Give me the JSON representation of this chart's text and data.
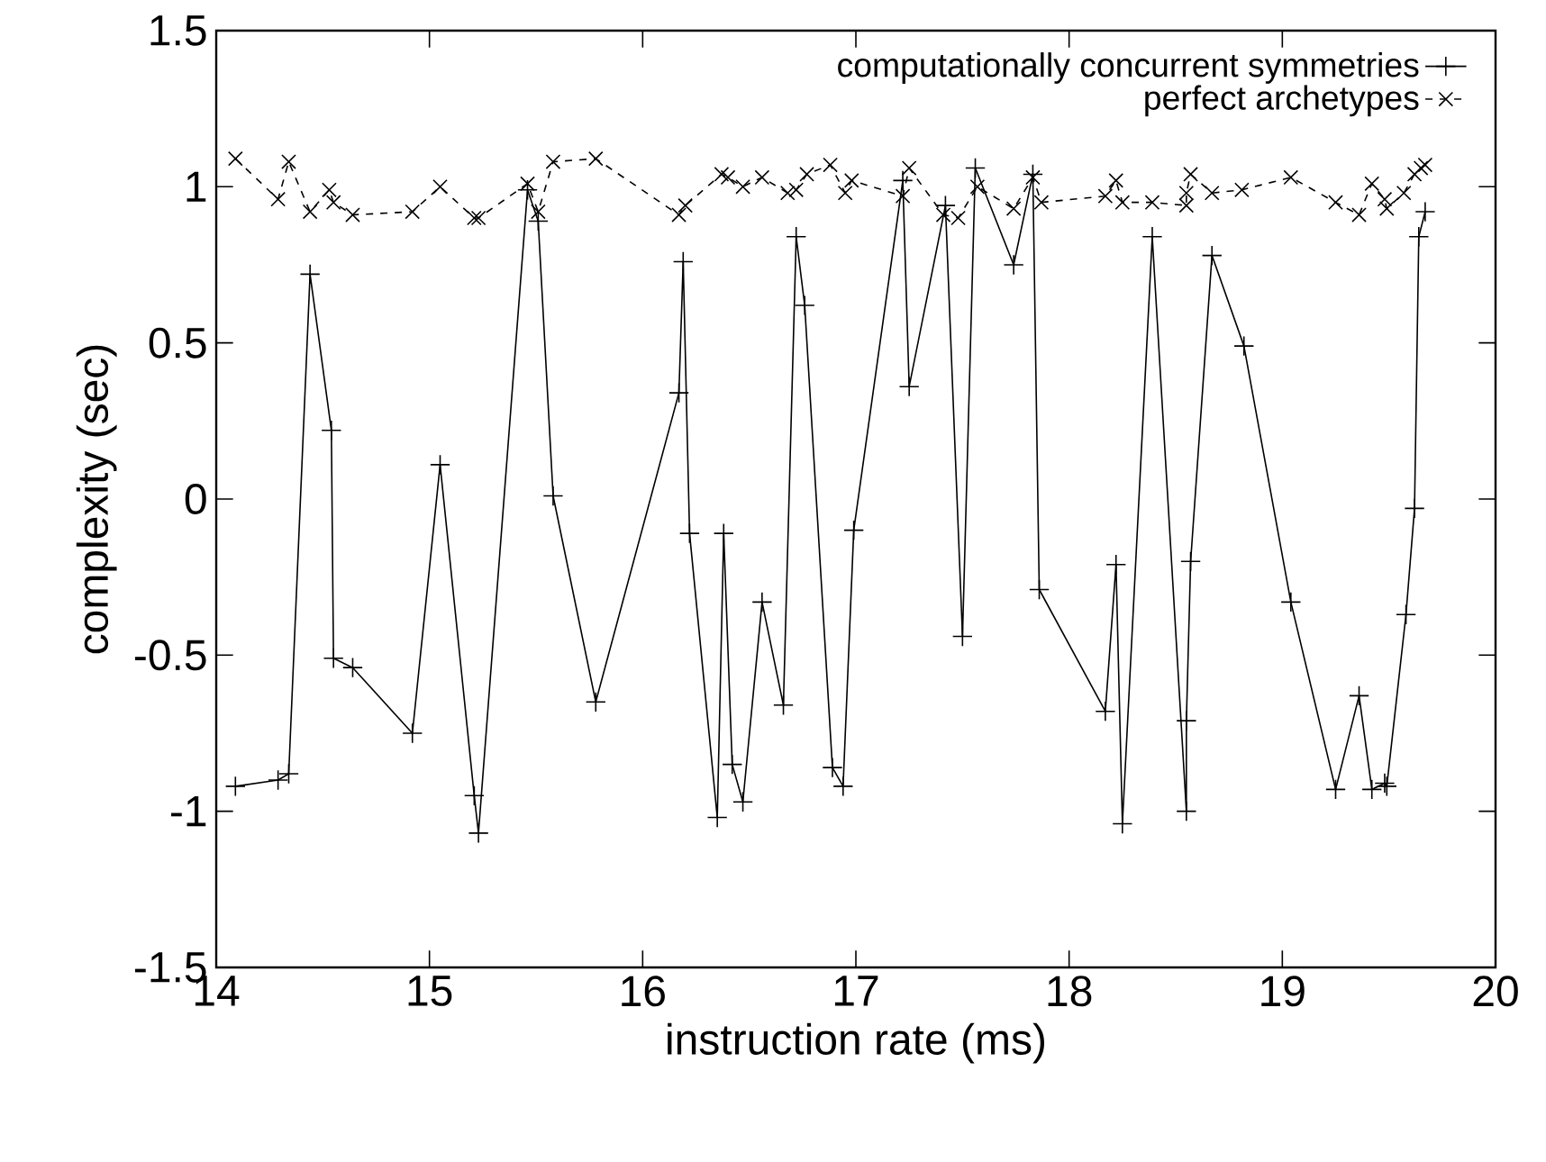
{
  "chart_data": {
    "type": "line",
    "xlabel": "instruction rate (ms)",
    "ylabel": "complexity (sec)",
    "xlim": [
      14,
      20
    ],
    "ylim": [
      -1.5,
      1.5
    ],
    "xticks": [
      14,
      15,
      16,
      17,
      18,
      19,
      20
    ],
    "yticks": [
      -1.5,
      -1,
      -0.5,
      0,
      0.5,
      1,
      1.5
    ],
    "grid": false,
    "legend": "top right",
    "series": [
      {
        "name": "computationally concurrent symmetries",
        "color": "#000000",
        "marker": "plus",
        "line_style": "solid",
        "x": [
          14.09,
          14.29,
          14.34,
          14.44,
          14.54,
          14.55,
          14.64,
          14.92,
          15.05,
          15.21,
          15.23,
          15.46,
          15.51,
          15.58,
          15.78,
          16.17,
          16.19,
          16.22,
          16.35,
          16.38,
          16.42,
          16.47,
          16.56,
          16.66,
          16.72,
          16.76,
          16.89,
          16.94,
          16.99,
          17.22,
          17.25,
          17.42,
          17.5,
          17.56,
          17.74,
          17.83,
          17.86,
          18.17,
          18.22,
          18.25,
          18.39,
          18.55,
          18.55,
          18.57,
          18.67,
          18.82,
          19.04,
          19.25,
          19.36,
          19.42,
          19.48,
          19.49,
          19.58,
          19.62,
          19.64,
          19.67
        ],
        "values": [
          -0.92,
          -0.9,
          -0.88,
          0.72,
          0.22,
          -0.51,
          -0.54,
          -0.75,
          0.11,
          -0.95,
          -1.07,
          0.99,
          0.89,
          0.01,
          -0.65,
          0.34,
          0.76,
          -0.11,
          -1.02,
          -0.11,
          -0.85,
          -0.97,
          -0.33,
          -0.66,
          0.84,
          0.62,
          -0.86,
          -0.92,
          -0.1,
          1.02,
          0.36,
          0.94,
          -0.44,
          1.06,
          0.75,
          1.04,
          -0.29,
          -0.68,
          -0.21,
          -1.04,
          0.84,
          -1.0,
          -0.71,
          -0.2,
          0.78,
          0.49,
          -0.33,
          -0.93,
          -0.63,
          -0.93,
          -0.91,
          -0.92,
          -0.37,
          -0.03,
          0.84,
          0.92
        ]
      },
      {
        "name": "perfect archetypes",
        "color": "#000000",
        "marker": "cross",
        "line_style": "dashed",
        "x": [
          14.09,
          14.29,
          14.34,
          14.44,
          14.53,
          14.55,
          14.64,
          14.92,
          15.05,
          15.21,
          15.23,
          15.46,
          15.51,
          15.58,
          15.78,
          16.17,
          16.2,
          16.37,
          16.4,
          16.47,
          16.56,
          16.68,
          16.72,
          16.77,
          16.88,
          16.95,
          16.98,
          17.22,
          17.25,
          17.41,
          17.48,
          17.57,
          17.74,
          17.83,
          17.87,
          18.17,
          18.22,
          18.25,
          18.39,
          18.55,
          18.55,
          18.57,
          18.67,
          18.81,
          19.04,
          19.25,
          19.36,
          19.42,
          19.48,
          19.49,
          19.57,
          19.62,
          19.65,
          19.67
        ],
        "values": [
          1.09,
          0.96,
          1.08,
          0.92,
          0.99,
          0.95,
          0.91,
          0.92,
          1.0,
          0.9,
          0.9,
          1.01,
          0.92,
          1.08,
          1.09,
          0.91,
          0.94,
          1.04,
          1.03,
          1.0,
          1.03,
          0.98,
          0.99,
          1.04,
          1.07,
          0.98,
          1.02,
          0.97,
          1.06,
          0.91,
          0.9,
          1.0,
          0.93,
          1.03,
          0.95,
          0.97,
          1.02,
          0.95,
          0.95,
          0.94,
          0.98,
          1.04,
          0.98,
          0.99,
          1.03,
          0.95,
          0.91,
          1.01,
          0.96,
          0.93,
          0.98,
          1.04,
          1.06,
          1.07
        ]
      }
    ]
  }
}
